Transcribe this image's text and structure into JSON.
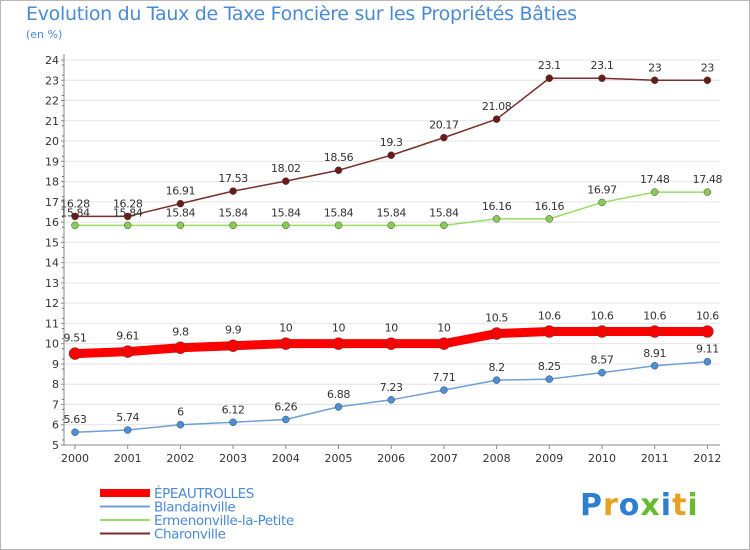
{
  "header": {
    "title": "Evolution du Taux de Taxe Foncière sur les Propriétés Bâties",
    "subtitle": "(en %)"
  },
  "logo": {
    "text": "Proxiti",
    "letter_colors": [
      "#2f7fd0",
      "#e8a020",
      "#2f7fd0",
      "#66bb33",
      "#2f7fd0",
      "#e8a020",
      "#66bb33"
    ]
  },
  "chart_data": {
    "type": "line",
    "title": "Evolution du Taux de Taxe Foncière sur les Propriétés Bâties",
    "ylabel": "(en %)",
    "x": [
      "2000",
      "2001",
      "2002",
      "2003",
      "2004",
      "2005",
      "2006",
      "2007",
      "2008",
      "2009",
      "2010",
      "2011",
      "2012"
    ],
    "ylim": [
      5,
      24
    ],
    "yticks": [
      5,
      6,
      7,
      8,
      9,
      10,
      11,
      12,
      13,
      14,
      15,
      16,
      17,
      18,
      19,
      20,
      21,
      22,
      23,
      24
    ],
    "grid": "horizontal",
    "legend_position": "bottom-left",
    "series": [
      {
        "name": "ÉPEAUTROLLES",
        "color": "#ff0000",
        "values": [
          9.51,
          9.61,
          9.8,
          9.9,
          10,
          10,
          10,
          10,
          10.5,
          10.6,
          10.6,
          10.6,
          10.6
        ],
        "labels": [
          "9.51",
          "9.61",
          "9.8",
          "9.9",
          "10",
          "10",
          "10",
          "10",
          "10.5",
          "10.6",
          "10.6",
          "10.6",
          "10.6"
        ]
      },
      {
        "name": "Blandainville",
        "color": "#6fa0d6",
        "values": [
          5.63,
          5.74,
          6,
          6.12,
          6.26,
          6.88,
          7.23,
          7.71,
          8.2,
          8.25,
          8.57,
          8.91,
          9.11
        ],
        "labels": [
          "5.63",
          "5.74",
          "6",
          "6.12",
          "6.26",
          "6.88",
          "7.23",
          "7.71",
          "8.2",
          "8.25",
          "8.57",
          "8.91",
          "9.11"
        ]
      },
      {
        "name": "Ermenonville-la-Petite",
        "color": "#99dd66",
        "values": [
          15.84,
          15.84,
          15.84,
          15.84,
          15.84,
          15.84,
          15.84,
          15.84,
          16.16,
          16.16,
          16.97,
          17.48,
          17.48
        ],
        "labels": [
          "15.84",
          "15.84",
          "15.84",
          "15.84",
          "15.84",
          "15.84",
          "15.84",
          "15.84",
          "16.16",
          "16.16",
          "16.97",
          "17.48",
          "17.48"
        ]
      },
      {
        "name": "Charonville",
        "color": "#7a2e2e",
        "values": [
          16.28,
          16.28,
          16.91,
          17.53,
          18.02,
          18.56,
          19.3,
          20.17,
          21.08,
          23.1,
          23.1,
          23,
          23
        ],
        "labels": [
          "16.28",
          "16.28",
          "16.91",
          "17.53",
          "18.02",
          "18.56",
          "19.3",
          "20.17",
          "21.08",
          "23.1",
          "23.1",
          "23",
          "23"
        ]
      }
    ]
  }
}
